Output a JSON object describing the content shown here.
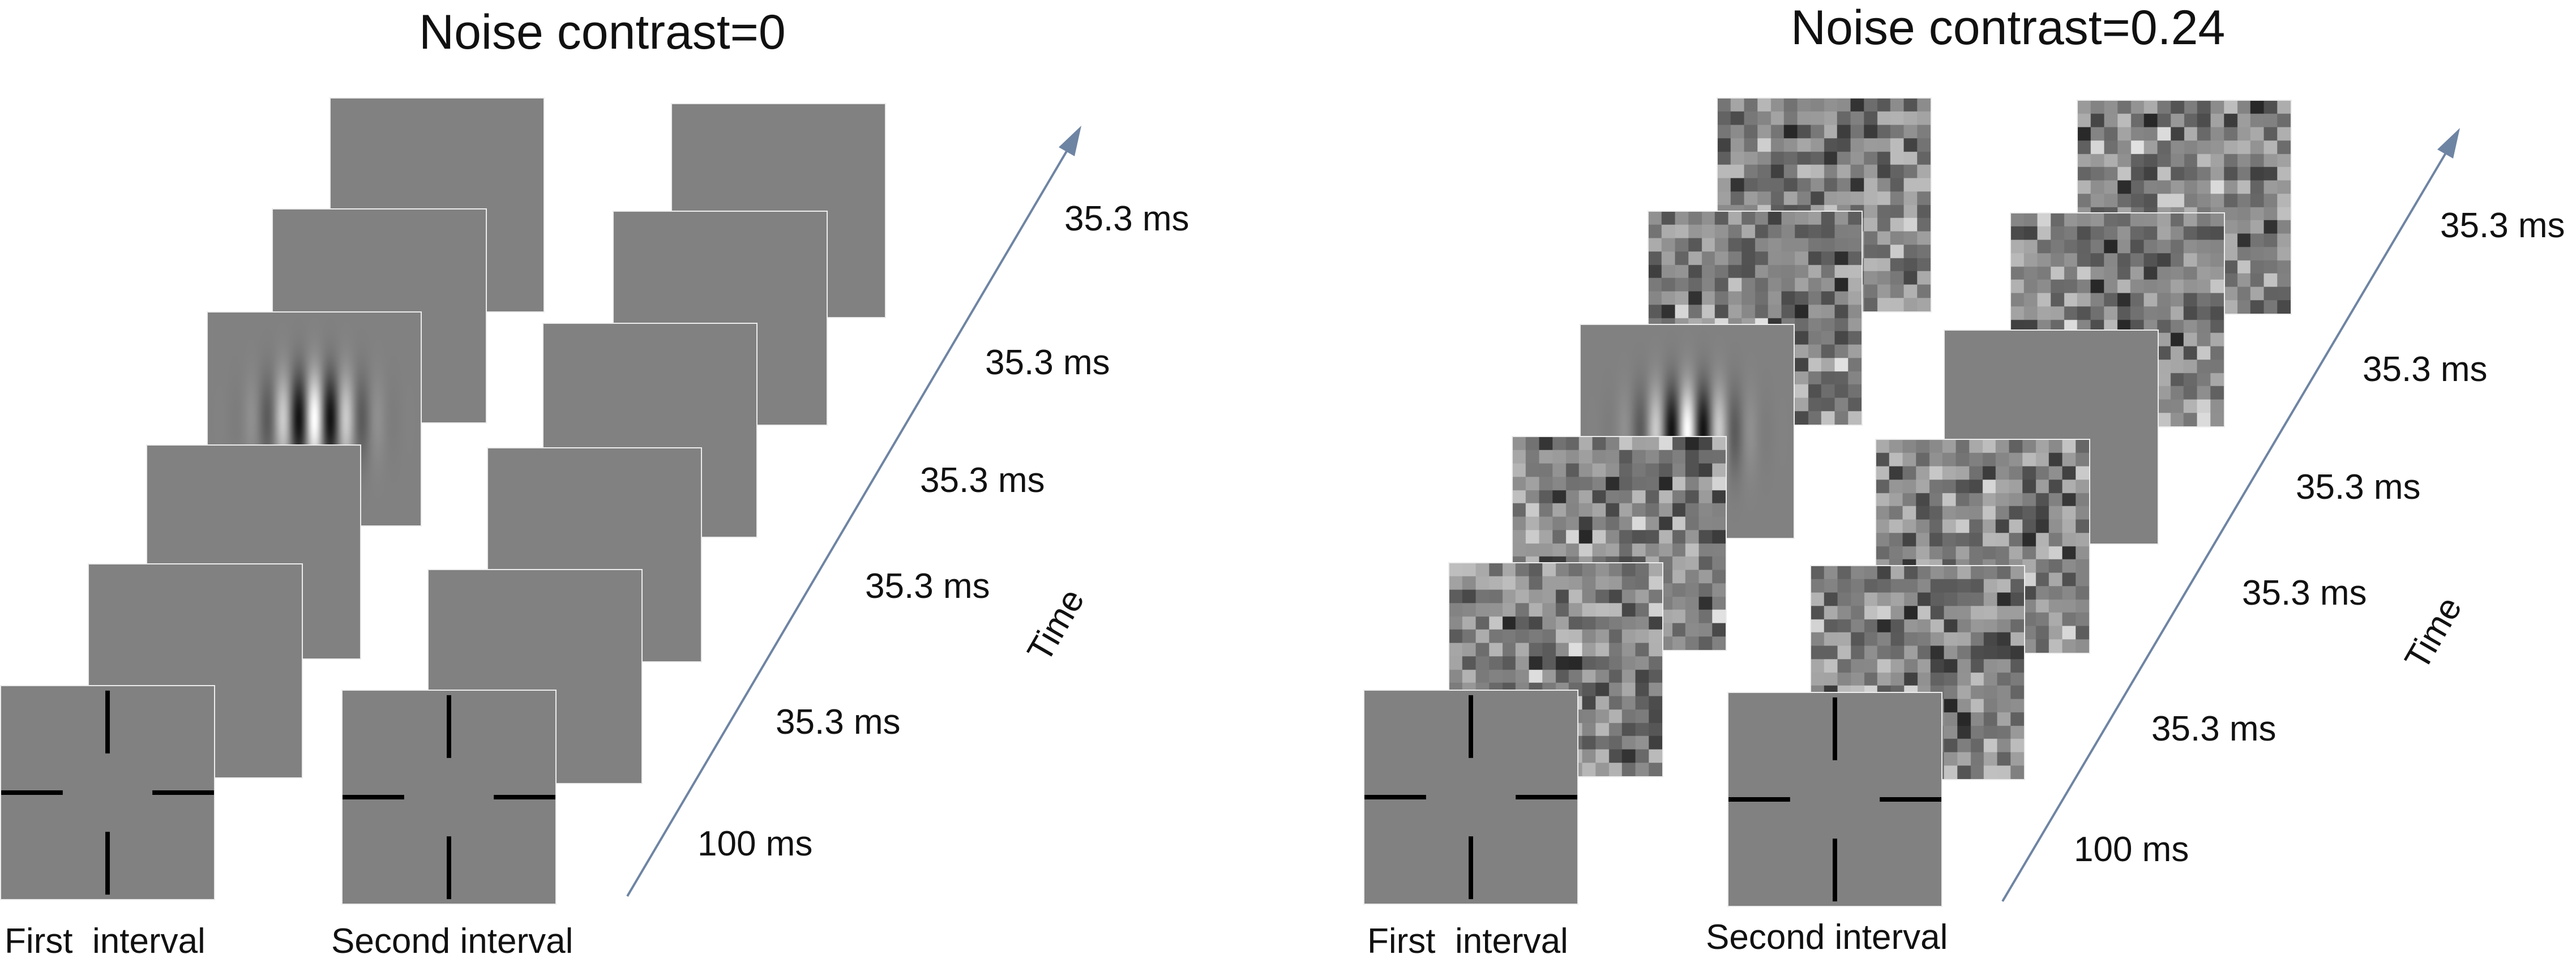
{
  "panels": [
    {
      "title": "Noise contrast=0",
      "interval_labels": [
        "First  interval",
        "Second interval"
      ],
      "time_labels": [
        "35.3 ms",
        "35.3 ms",
        "35.3 ms",
        "35.3 ms",
        "35.3 ms",
        "100 ms"
      ],
      "axis_label": "Time",
      "first_interval_frames": [
        "fixation",
        "blank",
        "blank",
        "gabor",
        "blank",
        "blank"
      ],
      "second_interval_frames": [
        "fixation",
        "blank",
        "blank",
        "blank",
        "blank",
        "blank"
      ]
    },
    {
      "title": "Noise contrast=0.24",
      "interval_labels": [
        "First  interval",
        "Second interval"
      ],
      "time_labels": [
        "35.3 ms",
        "35.3 ms",
        "35.3 ms",
        "35.3 ms",
        "35.3 ms",
        "100 ms"
      ],
      "axis_label": "Time",
      "first_interval_frames": [
        "fixation",
        "noise",
        "noise",
        "gabor",
        "noise",
        "noise"
      ],
      "second_interval_frames": [
        "fixation",
        "noise",
        "noise",
        "blank",
        "noise",
        "noise"
      ]
    }
  ],
  "colors": {
    "background_gray": "#818181",
    "frame_border": "#ececec",
    "arrow": "#6e84a3",
    "cross": "#000000"
  }
}
